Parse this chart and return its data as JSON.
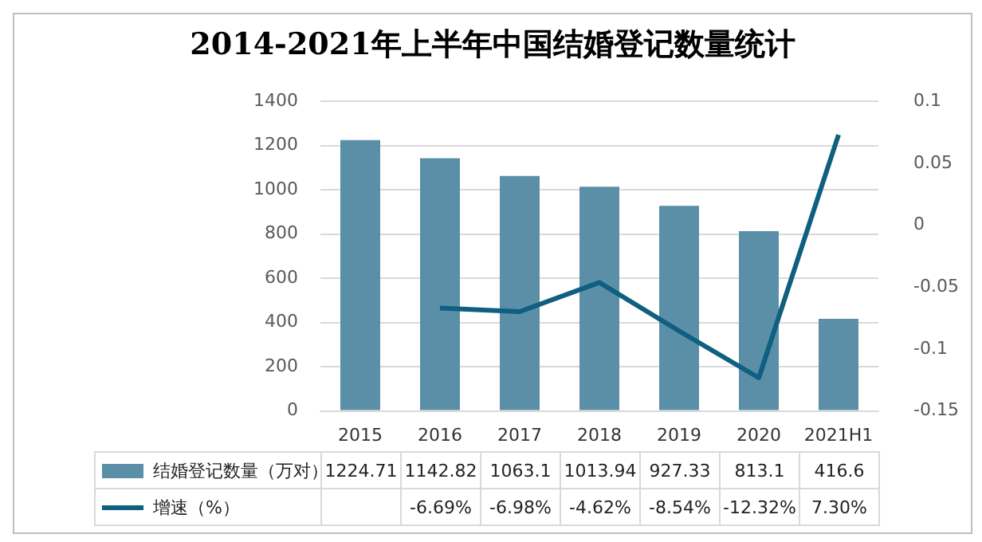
{
  "chart_data": {
    "type": "bar",
    "title": "2014-2021年上半年中国结婚登记数量统计",
    "categories": [
      "2015",
      "2016",
      "2017",
      "2018",
      "2019",
      "2020",
      "2021H1"
    ],
    "series": [
      {
        "name": "结婚登记数量（万对）",
        "color": "#5b8fa8",
        "values": [
          1224.71,
          1142.82,
          1063.1,
          1013.94,
          927.33,
          813.1,
          416.6
        ],
        "value_labels": [
          "1224.71",
          "1142.82",
          "1063.1",
          "1013.94",
          "927.33",
          "813.1",
          "416.6"
        ]
      },
      {
        "name": "增速（%）",
        "type": "line",
        "axis": "y2",
        "color": "#0e5f80",
        "values": [
          null,
          -0.0669,
          -0.0698,
          -0.0462,
          -0.0854,
          -0.1232,
          0.073
        ],
        "value_labels": [
          null,
          "-6.69%",
          "-6.98%",
          "-4.62%",
          "-8.54%",
          "-12.32%",
          "7.30%"
        ]
      }
    ],
    "ylim": [
      0,
      1400
    ],
    "yticks": [
      0,
      200,
      400,
      600,
      800,
      1000,
      1200,
      1400
    ],
    "y2lim": [
      -0.15,
      0.1
    ],
    "y2ticks": [
      -0.15,
      -0.1,
      -0.05,
      0,
      0.05,
      0.1
    ],
    "grid": "y",
    "legend": "bottom",
    "marker": "none",
    "line_style": "solid"
  }
}
